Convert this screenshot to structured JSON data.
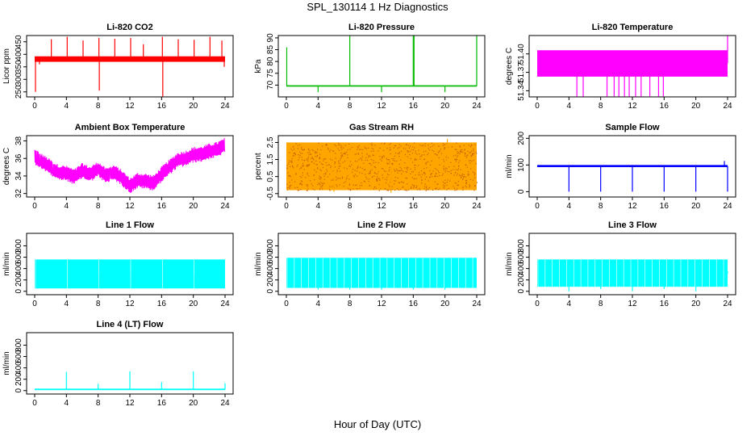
{
  "page": {
    "title": "SPL_130114  1 Hz Diagnostics",
    "xlabel": "Hour of Day (UTC)"
  },
  "chart_data": [
    {
      "type": "line",
      "title": "Li-820 CO2",
      "ylabel": "Licor ppm",
      "color": "#ff0000",
      "xlim": [
        0,
        24
      ],
      "ylim": [
        230,
        475
      ],
      "xticks": [
        "0",
        "4",
        "8",
        "12",
        "16",
        "20",
        "24"
      ],
      "yticks": [
        "250",
        "300",
        "350",
        "400",
        "450"
      ],
      "baseline": 380,
      "band": [
        370,
        392
      ],
      "spikes": [
        [
          0.1,
          250
        ],
        [
          0.6,
          360
        ],
        [
          2.1,
          460
        ],
        [
          4.1,
          470
        ],
        [
          6.1,
          455
        ],
        [
          8.1,
          465
        ],
        [
          8.15,
          255
        ],
        [
          10.1,
          462
        ],
        [
          12.1,
          465
        ],
        [
          13.7,
          440
        ],
        [
          16.1,
          470
        ],
        [
          16.15,
          232
        ],
        [
          18.1,
          460
        ],
        [
          20.1,
          458
        ],
        [
          22.1,
          470
        ],
        [
          23.6,
          455
        ],
        [
          23.9,
          350
        ]
      ]
    },
    {
      "type": "line",
      "title": "Li-820 Pressure",
      "ylabel": "kPa",
      "color": "#00bb00",
      "xlim": [
        0,
        24
      ],
      "ylim": [
        65,
        91
      ],
      "xticks": [
        "0",
        "4",
        "8",
        "12",
        "16",
        "20",
        "24"
      ],
      "yticks": [
        "70",
        "75",
        "80",
        "85",
        "90"
      ],
      "baseline": 69.6,
      "band": [
        69.4,
        69.9
      ],
      "spikes": [
        [
          0.05,
          86
        ],
        [
          4.0,
          67
        ],
        [
          8.0,
          91
        ],
        [
          12.0,
          67
        ],
        [
          16.0,
          91
        ],
        [
          16.1,
          91
        ],
        [
          20.0,
          67
        ],
        [
          24.0,
          91
        ]
      ]
    },
    {
      "type": "line",
      "title": "Li-820 Temperature",
      "ylabel": "degrees C",
      "color": "#ff00ff",
      "xlim": [
        0,
        24
      ],
      "ylim": [
        51.33,
        51.43
      ],
      "xticks": [
        "0",
        "4",
        "8",
        "12",
        "16",
        "20",
        "24"
      ],
      "yticks": [
        "51.34",
        "51.37",
        "51.40"
      ],
      "baseline": 51.385,
      "band": [
        51.363,
        51.406
      ],
      "spikes": [
        [
          5.0,
          51.33
        ],
        [
          5.8,
          51.33
        ],
        [
          8.8,
          51.33
        ],
        [
          9.7,
          51.33
        ],
        [
          10.3,
          51.33
        ],
        [
          11.0,
          51.33
        ],
        [
          11.6,
          51.33
        ],
        [
          12.4,
          51.33
        ],
        [
          13.1,
          51.33
        ],
        [
          14.2,
          51.33
        ],
        [
          15.3,
          51.33
        ],
        [
          15.9,
          51.33
        ],
        [
          24.0,
          51.43
        ]
      ]
    },
    {
      "type": "line",
      "title": "Ambient Box Temperature",
      "ylabel": "degrees C",
      "color": "#ff00ff",
      "xlim": [
        0,
        24
      ],
      "ylim": [
        31.6,
        38.6
      ],
      "xticks": [
        "0",
        "4",
        "8",
        "12",
        "16",
        "20",
        "24"
      ],
      "yticks": [
        "32",
        "34",
        "36",
        "38"
      ],
      "series": [
        {
          "x": [
            0,
            1,
            2,
            3,
            4,
            5,
            6,
            7,
            8,
            9,
            10,
            11,
            12,
            13,
            14,
            15,
            16,
            17,
            18,
            19,
            20,
            21,
            22,
            23,
            24
          ],
          "values": [
            36.2,
            35.6,
            35.0,
            34.4,
            34.3,
            33.9,
            34.6,
            34.2,
            34.8,
            34.0,
            34.4,
            33.8,
            32.9,
            33.5,
            33.4,
            33.2,
            34.2,
            35.0,
            35.8,
            36.0,
            36.4,
            36.5,
            36.8,
            37.0,
            37.5
          ]
        }
      ],
      "band_half_width": 0.9
    },
    {
      "type": "line",
      "title": "Gas Stream RH",
      "ylabel": "percent",
      "color": "#ffa500",
      "xlim": [
        0,
        24
      ],
      "ylim": [
        -0.7,
        2.9
      ],
      "xticks": [
        "0",
        "4",
        "8",
        "12",
        "16",
        "20",
        "24"
      ],
      "yticks": [
        "-0.5",
        "0.5",
        "1.5",
        "2.5"
      ],
      "baseline": 1.05,
      "band": [
        -0.3,
        2.5
      ],
      "spikes": [
        [
          20.3,
          2.7
        ],
        [
          6.0,
          -0.4
        ],
        [
          13.2,
          -0.45
        ]
      ]
    },
    {
      "type": "line",
      "title": "Sample Flow",
      "ylabel": "ml/min",
      "color": "#0000ff",
      "xlim": [
        0,
        24
      ],
      "ylim": [
        -20,
        210
      ],
      "xticks": [
        "0",
        "4",
        "8",
        "12",
        "16",
        "20",
        "24"
      ],
      "yticks": [
        "0",
        "100",
        "200"
      ],
      "baseline": 96,
      "band": [
        92,
        100
      ],
      "spikes": [
        [
          4.0,
          0
        ],
        [
          8.0,
          0
        ],
        [
          12.0,
          0
        ],
        [
          16.0,
          0
        ],
        [
          20.0,
          0
        ],
        [
          23.6,
          115
        ],
        [
          24.0,
          0
        ]
      ]
    },
    {
      "type": "line",
      "title": "Line 1 Flow",
      "ylabel": "ml/min",
      "color": "#00ffff",
      "xlim": [
        0,
        24
      ],
      "ylim": [
        -60,
        1020
      ],
      "xticks": [
        "0",
        "4",
        "8",
        "12",
        "16",
        "20",
        "24"
      ],
      "yticks": [
        "0",
        "200",
        "400",
        "600",
        "800"
      ],
      "band": [
        50,
        560
      ],
      "spikes": [
        [
          4.0,
          60
        ],
        [
          8.0,
          60
        ],
        [
          12.0,
          60
        ],
        [
          16.0,
          60
        ],
        [
          20.0,
          60
        ]
      ]
    },
    {
      "type": "line",
      "title": "Line 2 Flow",
      "ylabel": "ml/min",
      "color": "#00ffff",
      "xlim": [
        0,
        24
      ],
      "ylim": [
        -60,
        1020
      ],
      "xticks": [
        "0",
        "4",
        "8",
        "12",
        "16",
        "20",
        "24"
      ],
      "yticks": [
        "0",
        "200",
        "400",
        "600",
        "800"
      ],
      "band": [
        60,
        590
      ],
      "spikes": [
        [
          4.0,
          30
        ],
        [
          8.0,
          30
        ],
        [
          12.0,
          30
        ],
        [
          16.0,
          30
        ],
        [
          20.0,
          30
        ]
      ]
    },
    {
      "type": "line",
      "title": "Line 3 Flow",
      "ylabel": "ml/min",
      "color": "#00ffff",
      "xlim": [
        0,
        24
      ],
      "ylim": [
        -60,
        1020
      ],
      "xticks": [
        "0",
        "4",
        "8",
        "12",
        "16",
        "20",
        "24"
      ],
      "yticks": [
        "0",
        "200",
        "400",
        "600",
        "800"
      ],
      "band": [
        80,
        560
      ],
      "spikes": [
        [
          4.0,
          0
        ],
        [
          8.0,
          40
        ],
        [
          12.0,
          0
        ],
        [
          16.0,
          40
        ],
        [
          20.0,
          0
        ],
        [
          24.0,
          350
        ]
      ]
    },
    {
      "type": "line",
      "title": "Line 4 (LT) Flow",
      "ylabel": "ml/min",
      "color": "#00ffff",
      "xlim": [
        0,
        24
      ],
      "ylim": [
        -60,
        1020
      ],
      "xticks": [
        "0",
        "4",
        "8",
        "12",
        "16",
        "20",
        "24"
      ],
      "yticks": [
        "0",
        "200",
        "400",
        "600",
        "800"
      ],
      "baseline": 20,
      "band": [
        10,
        35
      ],
      "spikes": [
        [
          4.0,
          330
        ],
        [
          8.0,
          120
        ],
        [
          12.0,
          340
        ],
        [
          16.0,
          150
        ],
        [
          20.0,
          340
        ],
        [
          24.0,
          130
        ]
      ]
    }
  ]
}
